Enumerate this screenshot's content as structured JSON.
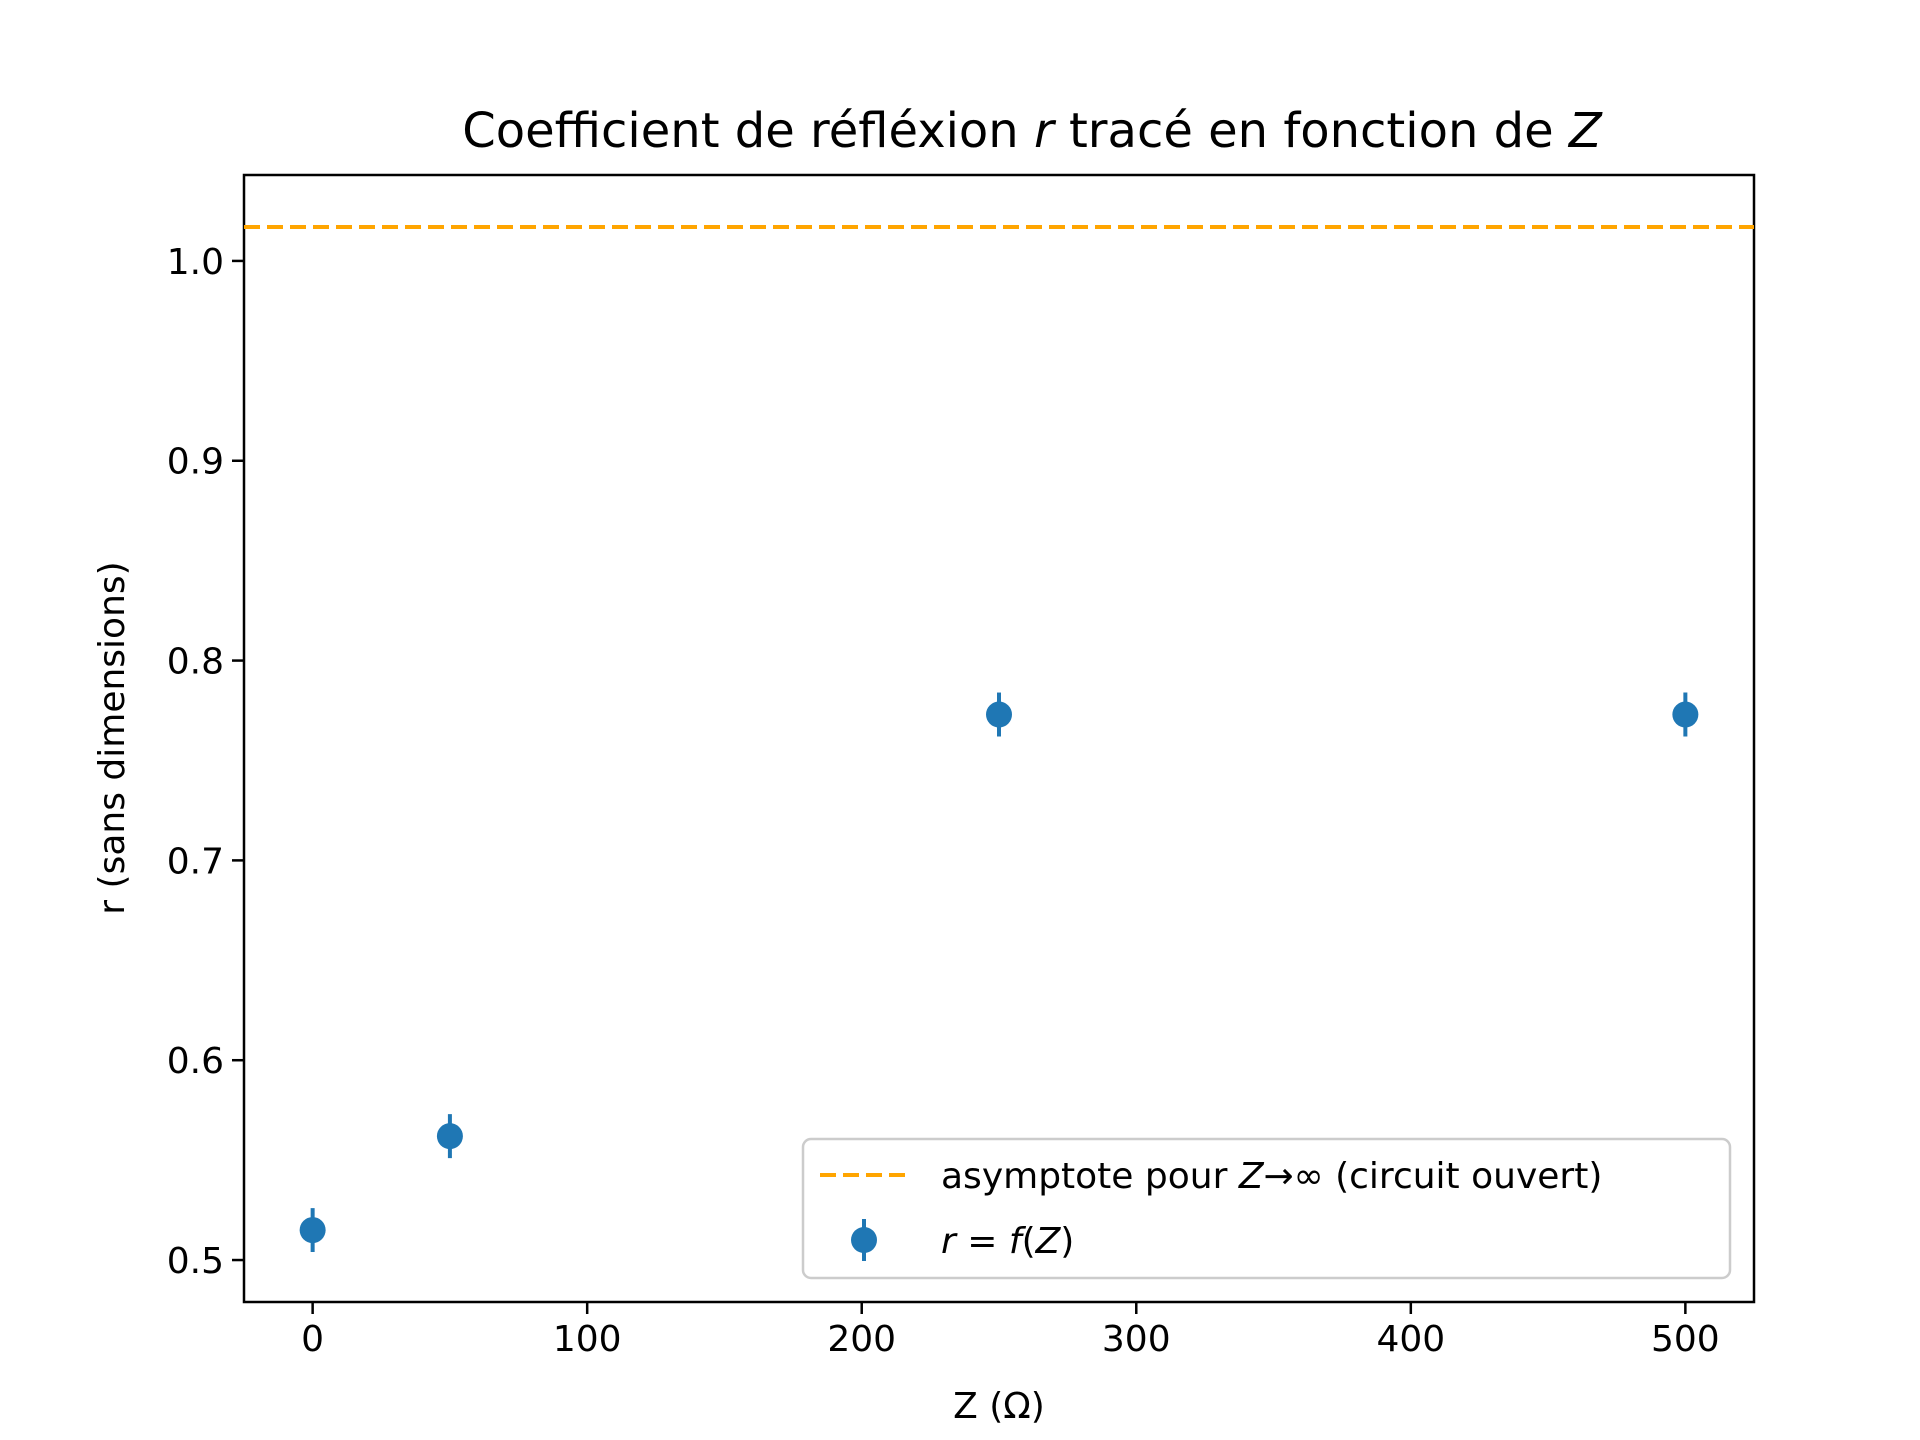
{
  "chart_data": {
    "type": "scatter",
    "title": {
      "prefix": "Coefficient de réfléxion ",
      "var1": "r",
      "middle": " tracé en fonction de ",
      "var2": "Z"
    },
    "xlabel": "Z (Ω)",
    "ylabel": "r (sans dimensions)",
    "xlim": [
      -25,
      525
    ],
    "ylim": [
      0.479,
      1.043
    ],
    "xticks": [
      0,
      100,
      200,
      300,
      400,
      500
    ],
    "yticks": [
      0.5,
      0.6,
      0.7,
      0.8,
      0.9,
      1.0
    ],
    "xtick_labels": [
      "0",
      "100",
      "200",
      "300",
      "400",
      "500"
    ],
    "ytick_labels": [
      "0.5",
      "0.6",
      "0.7",
      "0.8",
      "0.9",
      "1.0"
    ],
    "grid": false,
    "legend_position": "lower-right",
    "series": [
      {
        "name": "r = f(Z)",
        "name_parts": {
          "lhs": "r",
          "eq": " = ",
          "f": "f",
          "open": "(",
          "var": "Z",
          "close": ")"
        },
        "kind": "errorbar",
        "color": "#1f77b4",
        "x": [
          0,
          50,
          250,
          500
        ],
        "y": [
          0.515,
          0.562,
          0.773,
          0.773
        ],
        "yerr": [
          0.011,
          0.011,
          0.011,
          0.011
        ]
      }
    ],
    "reference_lines": [
      {
        "name": "asymptote pour Z→∞ (circuit ouvert)",
        "name_parts": {
          "prefix": "asymptote pour ",
          "var": "Z",
          "suffix": "→∞ (circuit ouvert)"
        },
        "orientation": "horizontal",
        "y": 1.017,
        "style": "dashed",
        "color": "#ffa500"
      }
    ]
  }
}
